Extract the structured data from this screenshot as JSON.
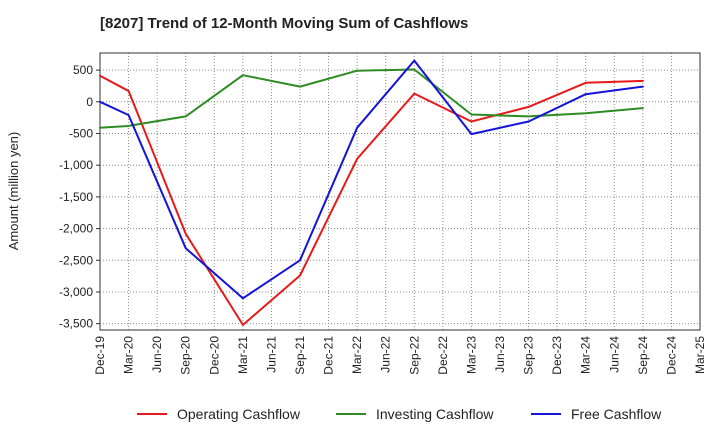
{
  "chart_data": {
    "type": "line",
    "title": "[8207]  Trend of 12-Month Moving Sum of Cashflows",
    "ylabel": "Amount (million yen)",
    "xlabel": "",
    "categories": [
      "Dec-19",
      "Mar-20",
      "Jun-20",
      "Sep-20",
      "Dec-20",
      "Mar-21",
      "Jun-21",
      "Sep-21",
      "Dec-21",
      "Mar-22",
      "Jun-22",
      "Sep-22",
      "Dec-22",
      "Mar-23",
      "Jun-23",
      "Sep-23",
      "Dec-23",
      "Mar-24",
      "Jun-24",
      "Sep-24",
      "Dec-24",
      "Mar-25"
    ],
    "ylim": [
      -3600,
      770
    ],
    "yticks": [
      500,
      0,
      -500,
      -1000,
      -1500,
      -2000,
      -2500,
      -3000,
      -3500
    ],
    "ytick_labels": [
      "500",
      "0",
      "-500",
      "-1,000",
      "-1,500",
      "-2,000",
      "-2,500",
      "-3,000",
      "-3,500"
    ],
    "grid": true,
    "legend_position": "bottom",
    "series": [
      {
        "name": "Operating Cashflow",
        "color": "#e8191a",
        "values": [
          410,
          170,
          null,
          -2080,
          null,
          -3520,
          null,
          -2740,
          null,
          -900,
          null,
          130,
          null,
          -310,
          null,
          -80,
          null,
          300,
          null,
          330,
          null,
          null
        ]
      },
      {
        "name": "Investing Cashflow",
        "color": "#2e8b22",
        "values": [
          -410,
          -380,
          null,
          -230,
          null,
          420,
          null,
          240,
          null,
          490,
          null,
          510,
          null,
          -200,
          null,
          -230,
          null,
          -180,
          null,
          -100,
          null,
          null
        ]
      },
      {
        "name": "Free Cashflow",
        "color": "#1414d8",
        "values": [
          0,
          -210,
          null,
          -2310,
          null,
          -3100,
          null,
          -2500,
          null,
          -410,
          null,
          650,
          null,
          -510,
          null,
          -310,
          null,
          120,
          null,
          240,
          null,
          null
        ]
      }
    ]
  }
}
